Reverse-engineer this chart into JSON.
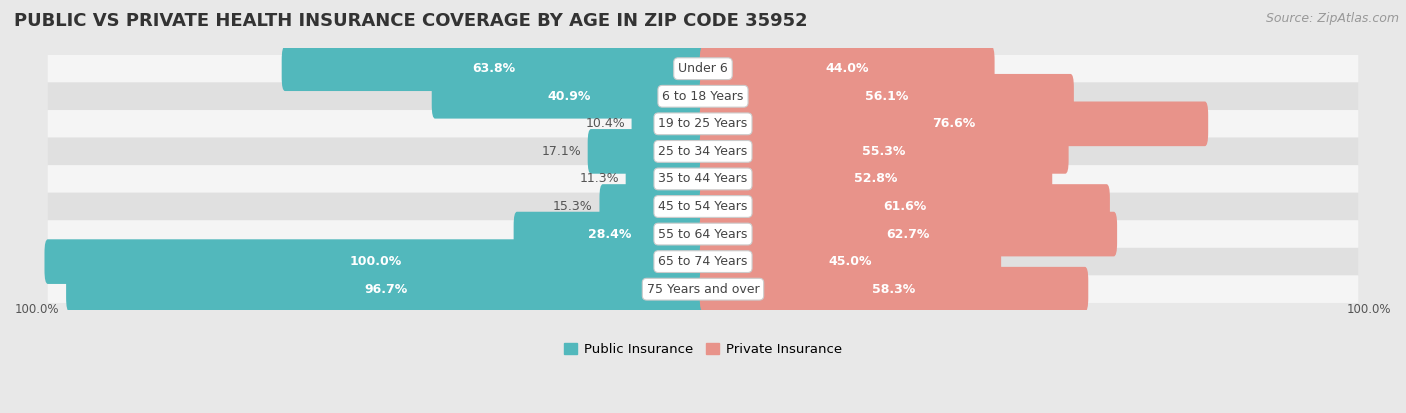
{
  "title": "PUBLIC VS PRIVATE HEALTH INSURANCE COVERAGE BY AGE IN ZIP CODE 35952",
  "source": "Source: ZipAtlas.com",
  "categories": [
    "Under 6",
    "6 to 18 Years",
    "19 to 25 Years",
    "25 to 34 Years",
    "35 to 44 Years",
    "45 to 54 Years",
    "55 to 64 Years",
    "65 to 74 Years",
    "75 Years and over"
  ],
  "public_values": [
    63.8,
    40.9,
    10.4,
    17.1,
    11.3,
    15.3,
    28.4,
    100.0,
    96.7
  ],
  "private_values": [
    44.0,
    56.1,
    76.6,
    55.3,
    52.8,
    61.6,
    62.7,
    45.0,
    58.3
  ],
  "public_color": "#52b8bc",
  "private_color": "#e8938a",
  "bg_color": "#e8e8e8",
  "row_bg_even": "#f5f5f5",
  "row_bg_odd": "#e0e0e0",
  "bar_height": 0.62,
  "axis_label_left": "100.0%",
  "axis_label_right": "100.0%",
  "legend_public": "Public Insurance",
  "legend_private": "Private Insurance",
  "title_fontsize": 13,
  "source_fontsize": 9,
  "label_fontsize": 9,
  "category_fontsize": 9,
  "max_val": 100.0
}
